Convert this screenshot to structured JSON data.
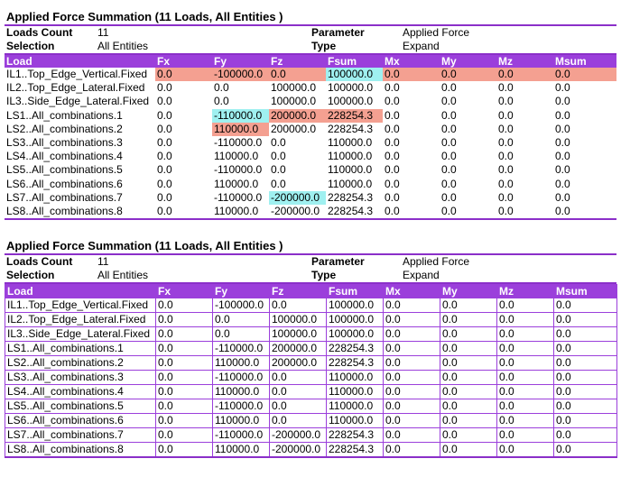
{
  "report1": {
    "title": "Applied Force Summation (11 Loads, All Entities )",
    "meta": {
      "loads_count_label": "Loads Count",
      "loads_count_value": "11",
      "selection_label": "Selection",
      "selection_value": "All Entities",
      "parameter_label": "Parameter",
      "parameter_value": "Applied Force",
      "type_label": "Type",
      "type_value": "Expand"
    },
    "columns": [
      "Load",
      "Fx",
      "Fy",
      "Fz",
      "Fsum",
      "Mx",
      "My",
      "Mz",
      "Msum"
    ],
    "rows": [
      [
        "IL1..Top_Edge_Vertical.Fixed",
        "0.0",
        "-100000.0",
        "0.0",
        "100000.0",
        "0.0",
        "0.0",
        "0.0",
        "0.0"
      ],
      [
        "IL2..Top_Edge_Lateral.Fixed",
        "0.0",
        "0.0",
        "100000.0",
        "100000.0",
        "0.0",
        "0.0",
        "0.0",
        "0.0"
      ],
      [
        "IL3..Side_Edge_Lateral.Fixed",
        "0.0",
        "0.0",
        "100000.0",
        "100000.0",
        "0.0",
        "0.0",
        "0.0",
        "0.0"
      ],
      [
        "LS1..All_combinations.1",
        "0.0",
        "-110000.0",
        "200000.0",
        "228254.3",
        "0.0",
        "0.0",
        "0.0",
        "0.0"
      ],
      [
        "LS2..All_combinations.2",
        "0.0",
        "110000.0",
        "200000.0",
        "228254.3",
        "0.0",
        "0.0",
        "0.0",
        "0.0"
      ],
      [
        "LS3..All_combinations.3",
        "0.0",
        "-110000.0",
        "0.0",
        "110000.0",
        "0.0",
        "0.0",
        "0.0",
        "0.0"
      ],
      [
        "LS4..All_combinations.4",
        "0.0",
        "110000.0",
        "0.0",
        "110000.0",
        "0.0",
        "0.0",
        "0.0",
        "0.0"
      ],
      [
        "LS5..All_combinations.5",
        "0.0",
        "-110000.0",
        "0.0",
        "110000.0",
        "0.0",
        "0.0",
        "0.0",
        "0.0"
      ],
      [
        "LS6..All_combinations.6",
        "0.0",
        "110000.0",
        "0.0",
        "110000.0",
        "0.0",
        "0.0",
        "0.0",
        "0.0"
      ],
      [
        "LS7..All_combinations.7",
        "0.0",
        "-110000.0",
        "-200000.0",
        "228254.3",
        "0.0",
        "0.0",
        "0.0",
        "0.0"
      ],
      [
        "LS8..All_combinations.8",
        "0.0",
        "110000.0",
        "-200000.0",
        "228254.3",
        "0.0",
        "0.0",
        "0.0",
        "0.0"
      ]
    ],
    "highlights": {
      "salmon": "#f4a091",
      "cyan": "#9ff0f0",
      "cells": [
        {
          "row": 0,
          "col": 1,
          "color": "salmon"
        },
        {
          "row": 0,
          "col": 2,
          "color": "salmon"
        },
        {
          "row": 0,
          "col": 3,
          "color": "salmon"
        },
        {
          "row": 0,
          "col": 4,
          "color": "cyan"
        },
        {
          "row": 0,
          "col": 5,
          "color": "salmon"
        },
        {
          "row": 0,
          "col": 6,
          "color": "salmon"
        },
        {
          "row": 0,
          "col": 7,
          "color": "salmon"
        },
        {
          "row": 0,
          "col": 8,
          "color": "salmon"
        },
        {
          "row": 3,
          "col": 2,
          "color": "cyan"
        },
        {
          "row": 3,
          "col": 3,
          "color": "salmon"
        },
        {
          "row": 3,
          "col": 4,
          "color": "salmon"
        },
        {
          "row": 4,
          "col": 2,
          "color": "salmon"
        },
        {
          "row": 9,
          "col": 3,
          "color": "cyan"
        }
      ]
    }
  },
  "report2": {
    "title": "Applied Force Summation (11 Loads, All Entities )",
    "meta": {
      "loads_count_label": "Loads Count",
      "loads_count_value": "11",
      "selection_label": "Selection",
      "selection_value": "All Entities",
      "parameter_label": "Parameter",
      "parameter_value": "Applied Force",
      "type_label": "Type",
      "type_value": "Expand"
    },
    "columns": [
      "Load",
      "Fx",
      "Fy",
      "Fz",
      "Fsum",
      "Mx",
      "My",
      "Mz",
      "Msum"
    ],
    "rows": [
      [
        "IL1..Top_Edge_Vertical.Fixed",
        "0.0",
        "-100000.0",
        "0.0",
        "100000.0",
        "0.0",
        "0.0",
        "0.0",
        "0.0"
      ],
      [
        "IL2..Top_Edge_Lateral.Fixed",
        "0.0",
        "0.0",
        "100000.0",
        "100000.0",
        "0.0",
        "0.0",
        "0.0",
        "0.0"
      ],
      [
        "IL3..Side_Edge_Lateral.Fixed",
        "0.0",
        "0.0",
        "100000.0",
        "100000.0",
        "0.0",
        "0.0",
        "0.0",
        "0.0"
      ],
      [
        "LS1..All_combinations.1",
        "0.0",
        "-110000.0",
        "200000.0",
        "228254.3",
        "0.0",
        "0.0",
        "0.0",
        "0.0"
      ],
      [
        "LS2..All_combinations.2",
        "0.0",
        "110000.0",
        "200000.0",
        "228254.3",
        "0.0",
        "0.0",
        "0.0",
        "0.0"
      ],
      [
        "LS3..All_combinations.3",
        "0.0",
        "-110000.0",
        "0.0",
        "110000.0",
        "0.0",
        "0.0",
        "0.0",
        "0.0"
      ],
      [
        "LS4..All_combinations.4",
        "0.0",
        "110000.0",
        "0.0",
        "110000.0",
        "0.0",
        "0.0",
        "0.0",
        "0.0"
      ],
      [
        "LS5..All_combinations.5",
        "0.0",
        "-110000.0",
        "0.0",
        "110000.0",
        "0.0",
        "0.0",
        "0.0",
        "0.0"
      ],
      [
        "LS6..All_combinations.6",
        "0.0",
        "110000.0",
        "0.0",
        "110000.0",
        "0.0",
        "0.0",
        "0.0",
        "0.0"
      ],
      [
        "LS7..All_combinations.7",
        "0.0",
        "-110000.0",
        "-200000.0",
        "228254.3",
        "0.0",
        "0.0",
        "0.0",
        "0.0"
      ],
      [
        "LS8..All_combinations.8",
        "0.0",
        "110000.0",
        "-200000.0",
        "228254.3",
        "0.0",
        "0.0",
        "0.0",
        "0.0"
      ]
    ]
  }
}
